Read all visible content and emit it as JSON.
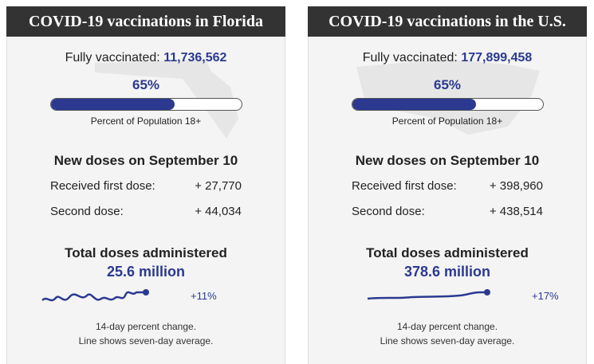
{
  "cards": [
    {
      "title": "COVID-19 vaccinations in Florida",
      "fully_label": "Fully vaccinated:",
      "fully_value": "11,736,562",
      "percent": 65,
      "percent_label": "65%",
      "percent_caption": "Percent of Population 18+",
      "new_doses_title": "New doses on September 10",
      "rows": [
        [
          "Received first dose:",
          "+ 27,770"
        ],
        [
          "Second dose:",
          "+ 44,034"
        ]
      ],
      "total_title": "Total doses administered",
      "total_value": "25.6 million",
      "change": "+11%",
      "footnote": [
        "14-day percent change.",
        "Line shows seven-day average."
      ]
    },
    {
      "title": "COVID-19 vaccinations in the U.S.",
      "fully_label": "Fully vaccinated:",
      "fully_value": "177,899,458",
      "percent": 65,
      "percent_label": "65%",
      "percent_caption": "Percent of Population 18+",
      "new_doses_title": "New doses on September 10",
      "rows": [
        [
          "Received first dose:",
          "+ 398,960"
        ],
        [
          "Second dose:",
          "+ 438,514"
        ]
      ],
      "total_title": "Total doses administered",
      "total_value": "378.6 million",
      "change": "+17%",
      "footnote": [
        "14-day percent change.",
        "Line shows seven-day average."
      ]
    }
  ]
}
